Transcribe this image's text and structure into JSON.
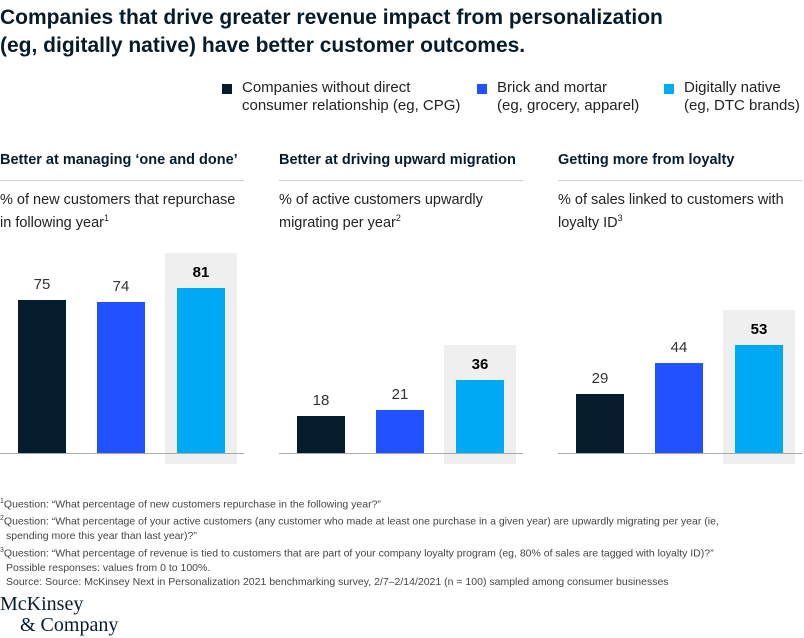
{
  "title_line1": "Companies that drive greater revenue impact from personalization",
  "title_line2": "(eg, digitally native) have better customer outcomes.",
  "legend": [
    {
      "line1": "Companies without direct",
      "line2": "consumer relationship (eg, CPG)",
      "color": "#051c2c"
    },
    {
      "line1": "Brick and mortar",
      "line2": "(eg, grocery, apparel)",
      "color": "#2251ff"
    },
    {
      "line1": "Digitally native",
      "line2": "(eg, DTC brands)",
      "color": "#00a9f4"
    }
  ],
  "chart_data": [
    {
      "type": "bar",
      "title": "Better at managing ‘one and done’",
      "subtitle": "% of new customers that repurchase in following year",
      "footnote_mark": "1",
      "categories": [
        "Companies without direct consumer relationship (eg, CPG)",
        "Brick and mortar (eg, grocery, apparel)",
        "Digitally native (eg, DTC brands)"
      ],
      "values": [
        75,
        74,
        81
      ],
      "labels": [
        "75",
        "74",
        "81"
      ],
      "highlight": 2,
      "ylim": [
        0,
        100
      ]
    },
    {
      "type": "bar",
      "title": "Better at driving upward migration",
      "subtitle": "% of active customers upwardly migrating per year",
      "footnote_mark": "2",
      "categories": [
        "Companies without direct consumer relationship (eg, CPG)",
        "Brick and mortar (eg, grocery, apparel)",
        "Digitally native (eg, DTC brands)"
      ],
      "values": [
        18,
        21,
        36
      ],
      "labels": [
        "18",
        "21",
        "36"
      ],
      "highlight": 2,
      "ylim": [
        0,
        100
      ]
    },
    {
      "type": "bar",
      "title": "Getting more from loyalty",
      "subtitle": "% of sales linked to customers with loyalty ID",
      "footnote_mark": "3",
      "categories": [
        "Companies without direct consumer relationship (eg, CPG)",
        "Brick and mortar (eg, grocery, apparel)",
        "Digitally native (eg, DTC brands)"
      ],
      "values": [
        29,
        44,
        53
      ],
      "labels": [
        "29",
        "44",
        "53"
      ],
      "highlight": 2,
      "ylim": [
        0,
        100
      ]
    }
  ],
  "notes": {
    "n1": "Question: “What percentage of new customers repurchase in the following year?”",
    "n2a": "Question: “What percentage of your active customers (any customer who made at least one purchase in a given year) are upwardly migrating per year (ie,",
    "n2b": "spending more this year than last year)?”",
    "n3a": "Question: “What percentage of revenue is tied to customers that are part of your company loyalty program (eg, 80% of sales are tagged with loyalty ID)?”",
    "n3b": "Possible responses: values from 0 to 100%.",
    "source": "Source: Source: McKinsey Next in Personalization 2021 benchmarking survey, 2/7–2/14/2021 (n = 100) sampled among consumer businesses",
    "m1": "1",
    "m2": "2",
    "m3": "3"
  },
  "logo": {
    "line1": "McKinsey",
    "line2": "& Company"
  }
}
